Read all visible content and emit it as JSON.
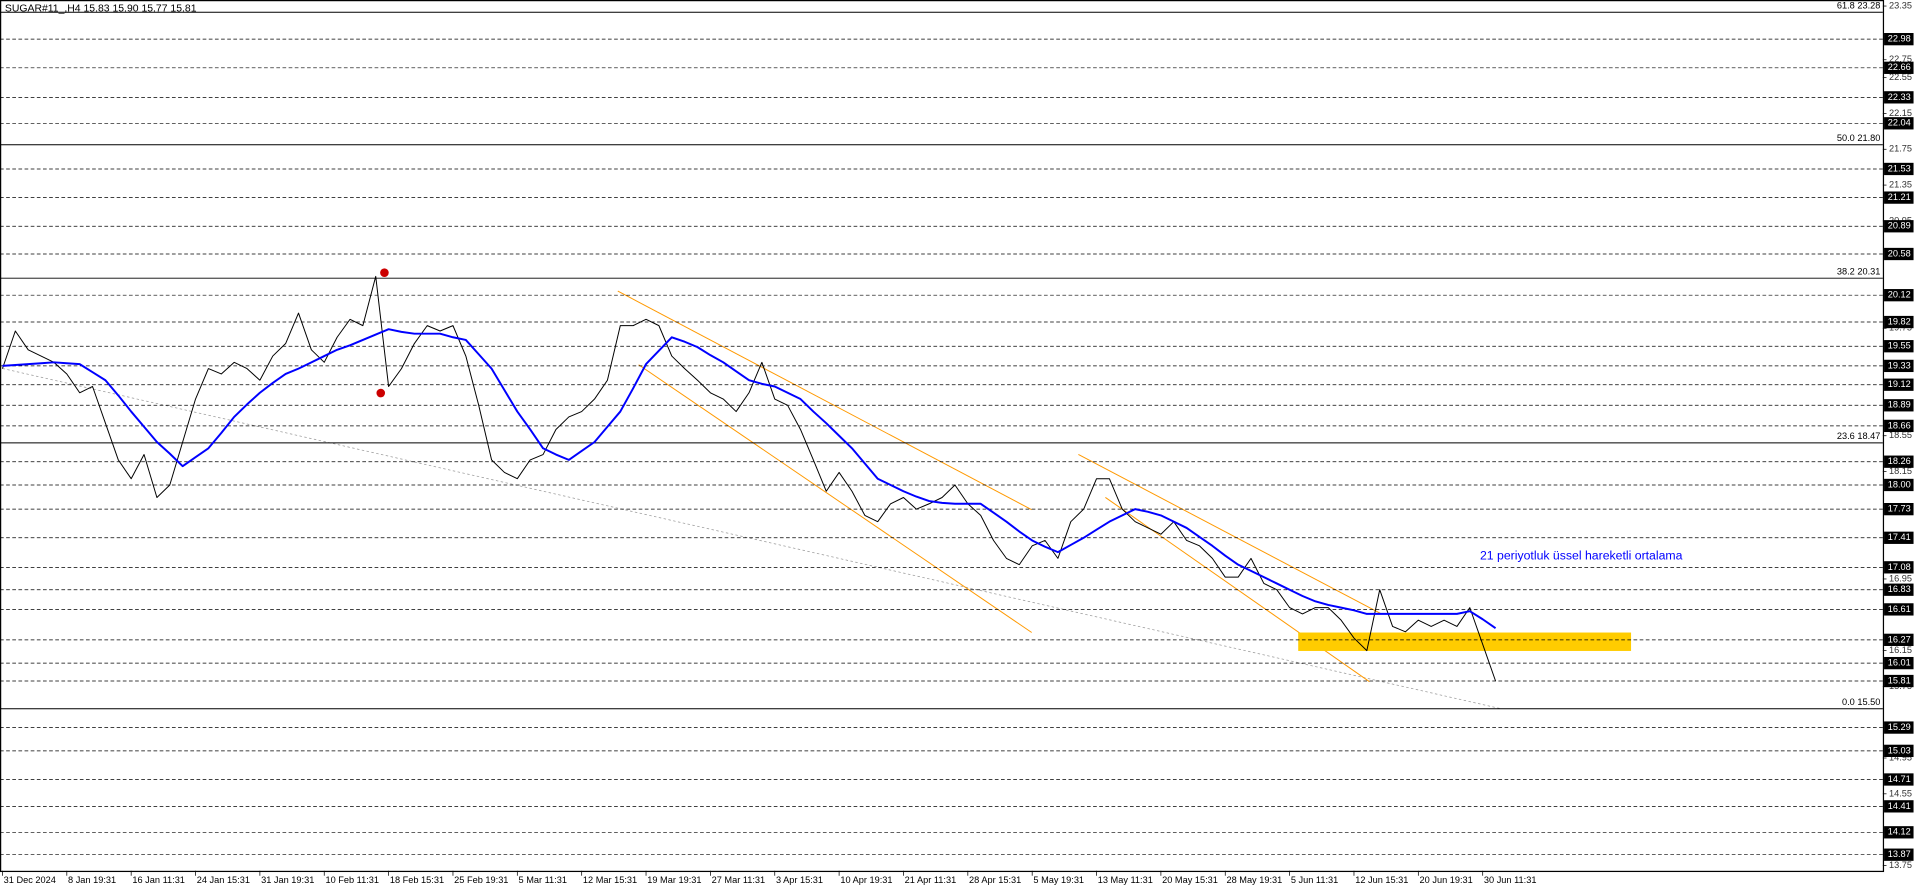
{
  "chart_data": {
    "type": "line",
    "title": "SUGAR#11_,H4  15.83 15.90 15.77 15.81",
    "annotation": "21 periyotluk üssel hareketli ortalama",
    "categories": [
      "31 Dec 2024",
      null,
      null,
      null,
      null,
      "8 Jan 19:31",
      null,
      null,
      null,
      null,
      "16 Jan 11:31",
      null,
      null,
      null,
      null,
      "24 Jan 15:31",
      null,
      null,
      null,
      null,
      "31 Jan 19:31",
      null,
      null,
      null,
      null,
      "10 Feb 11:31",
      null,
      null,
      null,
      null,
      "18 Feb 15:31",
      null,
      null,
      null,
      null,
      "25 Feb 19:31",
      null,
      null,
      null,
      null,
      "5 Mar 11:31",
      null,
      null,
      null,
      null,
      "12 Mar 15:31",
      null,
      null,
      null,
      null,
      "19 Mar 19:31",
      null,
      null,
      null,
      null,
      "27 Mar 11:31",
      null,
      null,
      null,
      null,
      "3 Apr 15:31",
      null,
      null,
      null,
      null,
      "10 Apr 19:31",
      null,
      null,
      null,
      null,
      "21 Apr 11:31",
      null,
      null,
      null,
      null,
      "28 Apr 15:31",
      null,
      null,
      null,
      null,
      "5 May 19:31",
      null,
      null,
      null,
      null,
      "13 May 11:31",
      null,
      null,
      null,
      null,
      "20 May 15:31",
      null,
      null,
      null,
      null,
      "28 May 19:31",
      null,
      null,
      null,
      null,
      "5 Jun 11:31",
      null,
      null,
      null,
      null,
      "12 Jun 15:31",
      null,
      null,
      null,
      null,
      "20 Jun 19:31",
      null,
      null,
      null,
      null,
      "30 Jun 11:31",
      null
    ],
    "series": [
      {
        "color": "#000000",
        "values": [
          19.3,
          19.72,
          19.51,
          19.44,
          19.37,
          19.24,
          19.03,
          19.1,
          18.69,
          18.28,
          18.07,
          18.34,
          17.86,
          18.0,
          18.48,
          18.96,
          19.3,
          19.24,
          19.37,
          19.3,
          19.17,
          19.44,
          19.58,
          19.92,
          19.51,
          19.37,
          19.65,
          19.85,
          19.78,
          20.33,
          19.1,
          19.3,
          19.58,
          19.78,
          19.72,
          19.78,
          19.44,
          18.89,
          18.28,
          18.14,
          18.07,
          18.28,
          18.34,
          18.62,
          18.76,
          18.82,
          18.96,
          19.17,
          19.78,
          19.78,
          19.85,
          19.78,
          19.44,
          19.3,
          19.17,
          19.03,
          18.96,
          18.82,
          19.03,
          19.37,
          18.96,
          18.89,
          18.62,
          18.28,
          17.93,
          18.14,
          17.93,
          17.66,
          17.59,
          17.79,
          17.86,
          17.73,
          17.79,
          17.86,
          18.0,
          17.79,
          17.66,
          17.38,
          17.18,
          17.11,
          17.32,
          17.38,
          17.18,
          17.59,
          17.73,
          18.07,
          18.07,
          17.73,
          17.59,
          17.52,
          17.45,
          17.59,
          17.38,
          17.32,
          17.18,
          16.97,
          16.97,
          17.18,
          16.9,
          16.83,
          16.63,
          16.56,
          16.63,
          16.63,
          16.49,
          16.29,
          16.15,
          16.83,
          16.42,
          16.36,
          16.49,
          16.42,
          16.49,
          16.42,
          16.63,
          16.22,
          15.81
        ]
      },
      {
        "color": "#0000ff",
        "values": [
          19.33,
          19.34,
          19.35,
          19.36,
          19.37,
          19.36,
          19.35,
          19.26,
          19.17,
          19.0,
          18.82,
          18.65,
          18.48,
          18.35,
          18.21,
          18.31,
          18.41,
          18.58,
          18.76,
          18.9,
          19.03,
          19.14,
          19.24,
          19.3,
          19.37,
          19.44,
          19.51,
          19.56,
          19.62,
          19.68,
          19.74,
          19.71,
          19.69,
          19.69,
          19.69,
          19.65,
          19.62,
          19.46,
          19.3,
          19.06,
          18.82,
          18.62,
          18.41,
          18.34,
          18.28,
          18.38,
          18.48,
          18.65,
          18.82,
          19.08,
          19.35,
          19.5,
          19.65,
          19.6,
          19.54,
          19.45,
          19.37,
          19.27,
          19.17,
          19.13,
          19.1,
          19.03,
          18.96,
          18.82,
          18.69,
          18.55,
          18.41,
          18.24,
          18.07,
          18.0,
          17.93,
          17.87,
          17.82,
          17.8,
          17.79,
          17.79,
          17.79,
          17.69,
          17.59,
          17.48,
          17.38,
          17.31,
          17.25,
          17.33,
          17.41,
          17.5,
          17.59,
          17.66,
          17.73,
          17.7,
          17.66,
          17.59,
          17.52,
          17.42,
          17.32,
          17.21,
          17.11,
          17.04,
          16.97,
          16.9,
          16.83,
          16.76,
          16.7,
          16.66,
          16.63,
          16.6,
          16.56,
          16.56,
          16.56,
          16.56,
          16.56,
          16.56,
          16.56,
          16.56,
          16.59,
          16.5,
          16.4
        ]
      }
    ],
    "ylim": [
      13.69,
      23.39
    ],
    "yticks": [
      13.75,
      14.55,
      14.95,
      15.75,
      16.15,
      16.95,
      18.15,
      18.55,
      19.75,
      20.95,
      21.35,
      21.75,
      22.15,
      22.55,
      22.75,
      23.35
    ],
    "levels": [
      22.98,
      22.66,
      22.33,
      22.04,
      21.53,
      21.21,
      20.89,
      20.58,
      20.12,
      19.82,
      19.55,
      19.33,
      19.12,
      18.89,
      18.66,
      18.26,
      {
        "value": 18,
        "label": "18.00"
      },
      17.73,
      17.41,
      17.08,
      16.83,
      16.61,
      16.27,
      16.01,
      15.81,
      15.29,
      15.03,
      14.71,
      14.41,
      14.12,
      13.87
    ],
    "fib_levels": [
      {
        "value": 23.28,
        "label": "61.8 23.28"
      },
      {
        "value": 21.8,
        "label": "50.0 21.80"
      },
      {
        "value": 20.31,
        "label": "38.2 20.31"
      },
      {
        "value": 18.47,
        "label": "23.6 18.47"
      },
      {
        "value": 15.5,
        "label": "0.0 15.50"
      }
    ]
  }
}
